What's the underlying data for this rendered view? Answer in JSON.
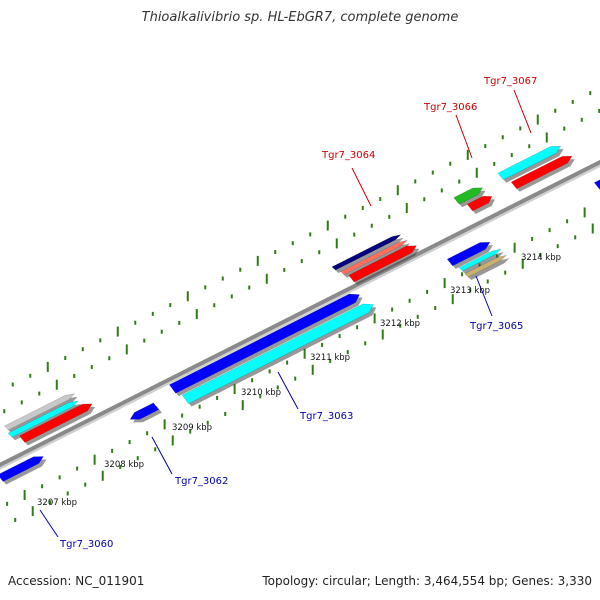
{
  "title": "Thioalkalivibrio sp. HL-EbGR7, complete genome",
  "footer": {
    "accession": "Accession: NC_011901",
    "summary": "Topology: circular; Length: 3,464,554 bp; Genes: 3,330"
  },
  "colors": {
    "backbone": "#8a8a8a",
    "tick": "#2e7d12",
    "top_label": "#cc0000",
    "bottom_label": "#0000aa",
    "ruler_text": "#111111"
  },
  "ruler": [
    {
      "label": "3207 kbp"
    },
    {
      "label": "3208 kbp"
    },
    {
      "label": "3209 kbp"
    },
    {
      "label": "3210 kbp"
    },
    {
      "label": "3211 kbp"
    },
    {
      "label": "3212 kbp"
    },
    {
      "label": "3213 kbp"
    },
    {
      "label": "3214 kbp"
    }
  ],
  "gene_labels": {
    "Tgr7_3060": "Tgr7_3060",
    "Tgr7_3062": "Tgr7_3062",
    "Tgr7_3063": "Tgr7_3063",
    "Tgr7_3064": "Tgr7_3064",
    "Tgr7_3065": "Tgr7_3065",
    "Tgr7_3066": "Tgr7_3066",
    "Tgr7_3067": "Tgr7_3067"
  }
}
